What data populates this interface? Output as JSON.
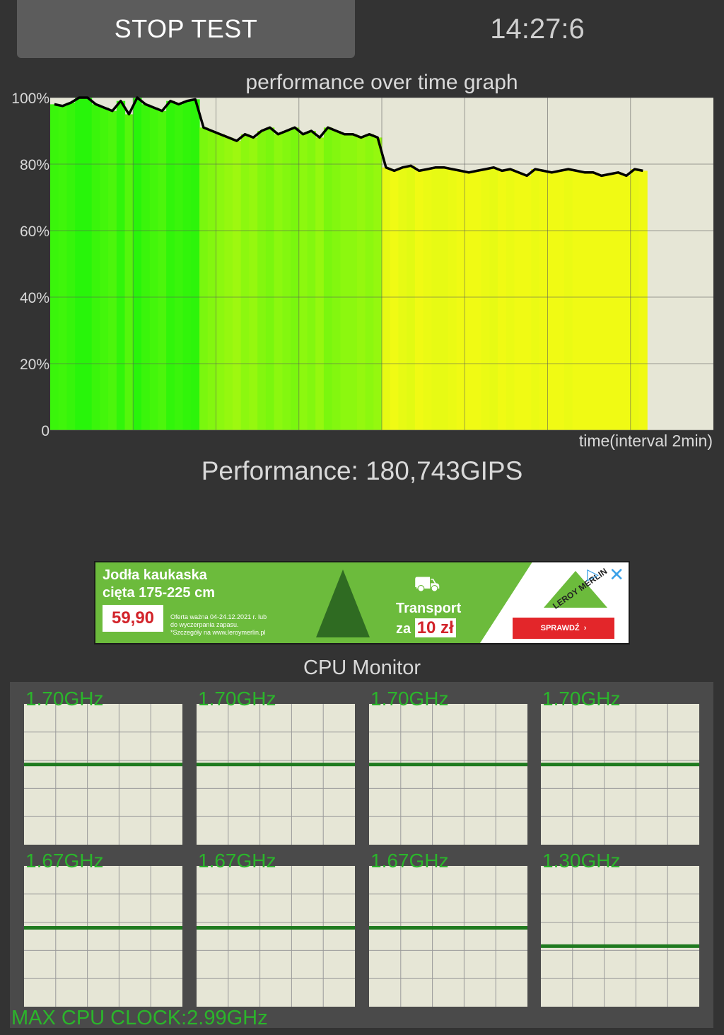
{
  "header": {
    "stop_button_label": "STOP TEST",
    "clock": "14:27:6"
  },
  "graph": {
    "title": "performance over time graph",
    "time_label": "time(interval 2min)",
    "performance_text": "Performance: 180,743GIPS"
  },
  "chart_data": {
    "type": "area",
    "title": "performance over time graph",
    "xlabel": "time(interval 2min)",
    "ylabel": "",
    "y_tick_labels": [
      "0",
      "20%",
      "40%",
      "60%",
      "80%",
      "100%"
    ],
    "ylim": [
      0,
      100
    ],
    "x_interval_minutes": 2,
    "grid": true,
    "series": [
      {
        "points": [
          [
            0,
            98
          ],
          [
            1,
            97.5
          ],
          [
            2,
            98.5
          ],
          [
            3,
            100
          ],
          [
            4,
            100
          ],
          [
            5,
            98
          ],
          [
            6,
            97
          ],
          [
            7,
            96
          ],
          [
            8,
            99
          ],
          [
            9,
            95
          ],
          [
            10,
            100
          ],
          [
            11,
            98
          ],
          [
            12,
            97
          ],
          [
            13,
            96
          ],
          [
            14,
            99
          ],
          [
            15,
            98
          ],
          [
            16,
            99
          ],
          [
            17,
            99.5
          ],
          [
            18,
            91
          ],
          [
            19,
            90
          ],
          [
            20,
            89
          ],
          [
            21,
            88
          ],
          [
            22,
            87
          ],
          [
            23,
            89
          ],
          [
            24,
            88
          ],
          [
            25,
            90
          ],
          [
            26,
            91
          ],
          [
            27,
            89
          ],
          [
            28,
            90
          ],
          [
            29,
            91
          ],
          [
            30,
            89
          ],
          [
            31,
            90
          ],
          [
            32,
            88
          ],
          [
            33,
            91
          ],
          [
            34,
            90
          ],
          [
            35,
            89
          ],
          [
            36,
            89
          ],
          [
            37,
            88
          ],
          [
            38,
            89
          ],
          [
            39,
            88
          ],
          [
            40,
            79
          ],
          [
            41,
            78
          ],
          [
            42,
            79
          ],
          [
            43,
            79.5
          ],
          [
            44,
            78
          ],
          [
            45,
            78.5
          ],
          [
            46,
            79
          ],
          [
            47,
            79
          ],
          [
            48,
            78.5
          ],
          [
            49,
            78
          ],
          [
            50,
            77.5
          ],
          [
            51,
            78
          ],
          [
            52,
            78.5
          ],
          [
            53,
            79
          ],
          [
            54,
            78
          ],
          [
            55,
            78.5
          ],
          [
            56,
            77.5
          ],
          [
            57,
            76.5
          ],
          [
            58,
            78.5
          ],
          [
            59,
            78
          ],
          [
            60,
            77.5
          ],
          [
            61,
            78
          ],
          [
            62,
            78.5
          ],
          [
            63,
            78
          ],
          [
            64,
            77.5
          ],
          [
            65,
            77.5
          ],
          [
            66,
            76.5
          ],
          [
            67,
            77
          ],
          [
            68,
            77.5
          ],
          [
            69,
            76.5
          ],
          [
            70,
            78.5
          ],
          [
            71,
            78
          ]
        ]
      }
    ]
  },
  "ad": {
    "title_line1": "Jodła kaukaska",
    "title_line2": "cięta 175-225 cm",
    "price": "59,90",
    "small_line1": "Oferta ważna 04-24.12.2021 r. lub",
    "small_line2": "do wyczerpania zapasu.",
    "small_line3": "*Szczegóły na www.leroymerlin.pl",
    "transport_line1": "Transport",
    "transport_za": "za",
    "transport_price": "10 zł",
    "brand": "LEROY MERLIN",
    "cta": "SPRAWDŹ",
    "info_icon": "info-icon",
    "close_icon": "close-icon"
  },
  "cpu_monitor": {
    "title": "CPU Monitor",
    "cores": [
      {
        "freq": "1.70GHz",
        "level": 0.57
      },
      {
        "freq": "1.70GHz",
        "level": 0.57
      },
      {
        "freq": "1.70GHz",
        "level": 0.57
      },
      {
        "freq": "1.70GHz",
        "level": 0.57
      },
      {
        "freq": "1.67GHz",
        "level": 0.56
      },
      {
        "freq": "1.67GHz",
        "level": 0.56
      },
      {
        "freq": "1.67GHz",
        "level": 0.56
      },
      {
        "freq": "1.30GHz",
        "level": 0.43
      }
    ],
    "max_clock": "MAX CPU CLOCK:2.99GHz"
  },
  "colors": {
    "background": "#333333",
    "plot_background": "#e6e6d6",
    "cpu_line": "#1f7a1f",
    "cpu_text": "#2bb52b"
  }
}
